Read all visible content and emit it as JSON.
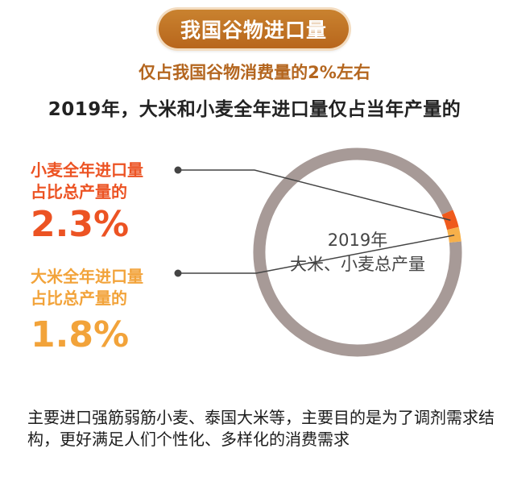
{
  "header": {
    "title": "我国谷物进口量",
    "subtitle": "仅占我国谷物消费量的2%左右",
    "headline": "2019年，大米和小麦全年进口量仅占当年产量的"
  },
  "annotations": {
    "wheat_label_line1": "小麦全年进口量",
    "wheat_label_line2": "占比总产量的",
    "wheat_value": "2.3%",
    "rice_label_line1": "大米全年进口量",
    "rice_label_line2": "占比总产量的",
    "rice_value": "1.8%"
  },
  "center": {
    "line1": "2019年",
    "line2": "大米、小麦总产量"
  },
  "footer": {
    "note": "主要进口强筋弱筋小麦、泰国大米等，主要目的是为了调剂需求结构，更好满足人们个性化、多样化的消费需求"
  },
  "chart_data": {
    "type": "pie",
    "categories": [
      "小麦全年进口量",
      "大米全年进口量",
      "2019年大米、小麦总产量"
    ],
    "values": [
      2.3,
      1.8,
      95.9
    ],
    "unit": "%",
    "center_label": "2019年 大米、小麦总产量",
    "colors": {
      "wheat": "#ef5a1c",
      "rice": "#f7b04a",
      "rest": "#a79a97",
      "connector": "#444444"
    }
  }
}
